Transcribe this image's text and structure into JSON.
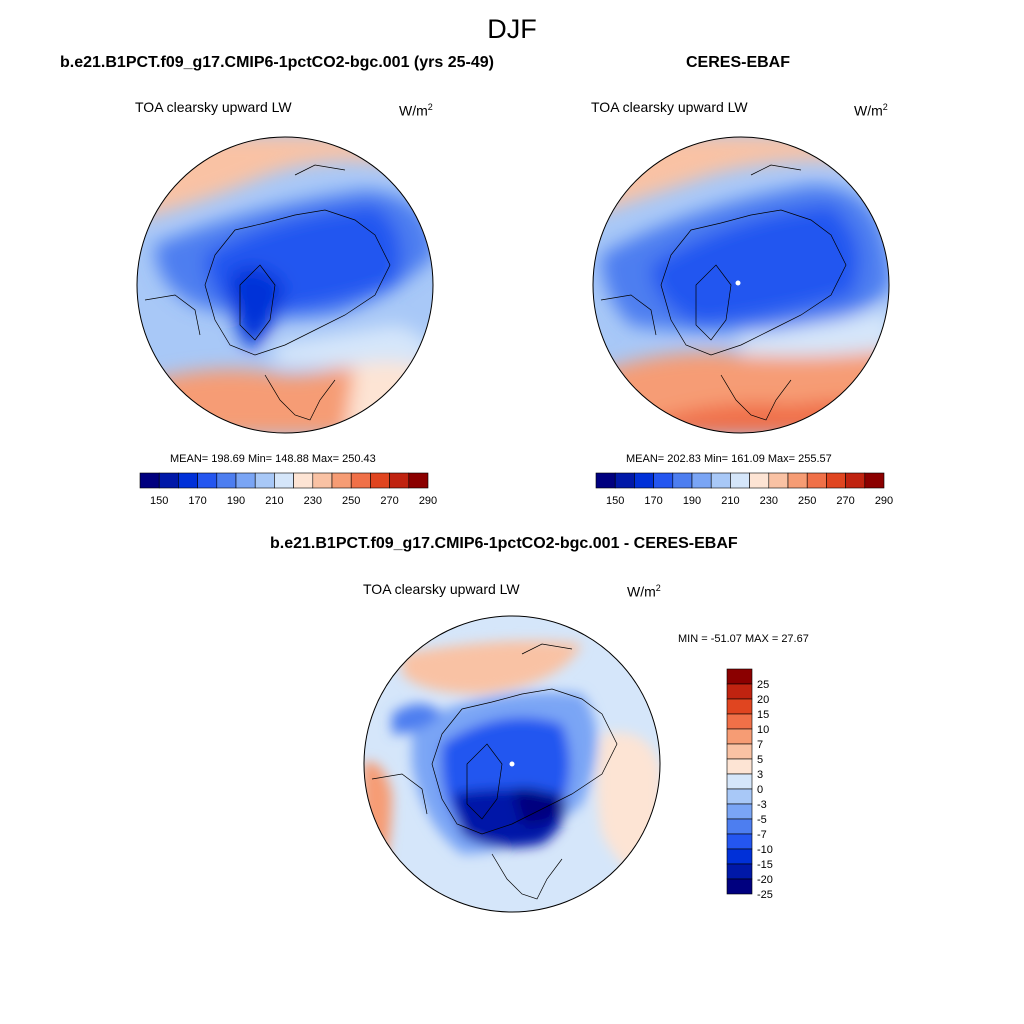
{
  "title": "DJF",
  "palette": [
    "#00007f",
    "#0018a8",
    "#0030d8",
    "#2456f0",
    "#4d7ef0",
    "#7aa5f5",
    "#a8c8f7",
    "#d5e6fa",
    "#fde4d4",
    "#f9c2a4",
    "#f69c74",
    "#f07048",
    "#e04520",
    "#c02310",
    "#8b0000"
  ],
  "diff_palette": [
    "#00007f",
    "#0018a8",
    "#0030d8",
    "#2456f0",
    "#4d7ef0",
    "#7aa5f5",
    "#a8c8f7",
    "#d5e6fa",
    "#fde4d4",
    "#f9c2a4",
    "#f69c74",
    "#f07048",
    "#e04520",
    "#c02310",
    "#8b0000"
  ],
  "panels": [
    {
      "title": "b.e21.B1PCT.f09_g17.CMIP6-1pctCO2-bgc.001 (yrs 25-49)",
      "variable": "TOA clearsky upward LW",
      "units": "W/m",
      "units_exp": "2",
      "stats": "MEAN= 198.69  Min= 148.88  Max= 250.43",
      "colorbar_labels": [
        "150",
        "170",
        "190",
        "210",
        "230",
        "250",
        "270",
        "290"
      ]
    },
    {
      "title": "CERES-EBAF",
      "variable": "TOA clearsky upward LW",
      "units": "W/m",
      "units_exp": "2",
      "stats": "MEAN= 202.83  Min= 161.09  Max= 255.57",
      "colorbar_labels": [
        "150",
        "170",
        "190",
        "210",
        "230",
        "250",
        "270",
        "290"
      ]
    }
  ],
  "diff_panel": {
    "title": "b.e21.B1PCT.f09_g17.CMIP6-1pctCO2-bgc.001 - CERES-EBAF",
    "variable": "TOA clearsky upward LW",
    "units": "W/m",
    "units_exp": "2",
    "stats": "MIN = -51.07 MAX =  27.67",
    "colorbar_labels": [
      "25",
      "20",
      "15",
      "10",
      "7",
      "5",
      "3",
      "0",
      "-3",
      "-5",
      "-7",
      "-10",
      "-15",
      "-20",
      "-25"
    ]
  }
}
